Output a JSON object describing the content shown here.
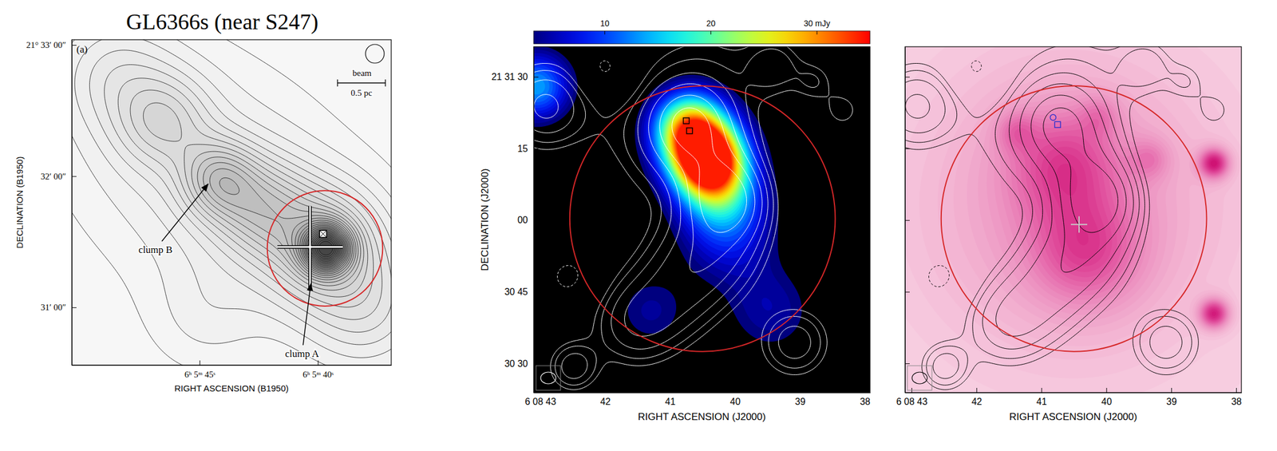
{
  "chart_data": {
    "type": "contour_map",
    "title": "GL6366s (near S247)",
    "panels": [
      {
        "type": "contour",
        "label": "(a)",
        "xlabel": "RIGHT ASCENSION (B1950)",
        "ylabel": "DECLINATION (B1950)",
        "xlim": [
          50.4,
          36.9
        ],
        "xticks": [
          {
            "value": 45,
            "label": "6ʰ 5ᵐ 45ˢ"
          },
          {
            "value": 40,
            "label": "6ʰ 5ᵐ 40ˢ"
          }
        ],
        "ylim": [
          30.56,
          33.04
        ],
        "yticks": [
          {
            "value": 33,
            "label": "21° 33′ 00″"
          },
          {
            "value": 32,
            "label": "32′ 00″"
          },
          {
            "value": 31,
            "label": "31′ 00″"
          }
        ],
        "contour_levels": [
          1,
          2,
          3,
          4,
          5,
          6,
          7,
          8,
          9,
          10,
          11,
          12,
          13,
          14,
          15,
          16,
          17,
          18,
          19,
          20,
          21,
          22,
          23,
          24,
          25,
          26,
          27,
          28
        ],
        "contour_sources": [
          {
            "ra": 39.64,
            "dec": 31.45,
            "peak": 18,
            "sigma": 0.12
          },
          {
            "ra": 39.8,
            "dec": 31.48,
            "peak": 8,
            "sigma": 0.3
          },
          {
            "ra": 44.19,
            "dec": 31.98,
            "peak": 7,
            "sigma": 0.2
          },
          {
            "ra": 46.54,
            "dec": 32.42,
            "peak": 5,
            "sigma": 0.25
          },
          {
            "ra": 42.4,
            "dec": 31.76,
            "peak": 6,
            "sigma": 0.25
          },
          {
            "ra": 48.6,
            "dec": 32.79,
            "peak": 3,
            "sigma": 0.3
          },
          {
            "ra": 43.1,
            "dec": 31.76,
            "peak": 3,
            "sigma": 0.6
          },
          {
            "ra": 47.23,
            "dec": 32.36,
            "peak": 2,
            "sigma": 0.6
          },
          {
            "ra": 38.26,
            "dec": 31.09,
            "peak": 2,
            "sigma": 0.5
          },
          {
            "ra": 37.92,
            "dec": 30.97,
            "peak": 3,
            "sigma": 0.3
          },
          {
            "ra": 44.81,
            "dec": 30.91,
            "peak": 1.5,
            "sigma": 0.3
          }
        ],
        "color": "#111111",
        "circle": {
          "ra": 39.7,
          "dec": 31.45,
          "radius": 0.44,
          "color": "#d62728"
        },
        "cross": {
          "ra": 40.33,
          "dec": 31.46,
          "color": "#ffffff"
        },
        "markers": [
          {
            "ra": 39.78,
            "dec": 31.56,
            "marker": "square",
            "color": "#000000"
          }
        ],
        "annotations": [
          {
            "text": "clump B",
            "ra": 44.64,
            "dec": 31.94
          },
          {
            "text": "clump A",
            "ra": 40.3,
            "dec": 31.18
          }
        ],
        "beam_label": "beam",
        "scale_bar_label": "0.5 pc"
      },
      {
        "type": "image_contour",
        "xlabel": "RIGHT ASCENSION (J2000)",
        "ylabel": "DECLINATION (J2000)",
        "xlim": [
          43.1,
          37.92
        ],
        "xticks": [
          {
            "value": 43,
            "label": "6 08 43"
          },
          42,
          41,
          40,
          39,
          38
        ],
        "ylim": [
          23.9,
          96.3
        ],
        "yticks": [
          {
            "value": 90,
            "label": "21 31 30"
          },
          {
            "value": 75,
            "label": "15"
          },
          {
            "value": 60,
            "label": "00"
          },
          {
            "value": 45,
            "label": "30 45"
          },
          {
            "value": 30,
            "label": "30 30"
          }
        ],
        "colorbar": {
          "range": [
            3.3,
            35
          ],
          "ticks": [
            10,
            20,
            {
              "value": 30,
              "label": "30 mJy"
            }
          ]
        },
        "image_sources": [
          {
            "ra": 40.72,
            "dec": 79.6,
            "peak": 20,
            "sigma": 5
          },
          {
            "ra": 40.42,
            "dec": 72.8,
            "peak": 32,
            "sigma": 5
          },
          {
            "ra": 40.55,
            "dec": 76.5,
            "peak": 10,
            "sigma": 7
          },
          {
            "ra": 40.23,
            "dec": 66,
            "peak": 14,
            "sigma": 6
          },
          {
            "ra": 40.1,
            "dec": 56.6,
            "peak": 7,
            "sigma": 7
          },
          {
            "ra": 43.05,
            "dec": 88,
            "peak": 14,
            "sigma": 5
          },
          {
            "ra": 39.45,
            "dec": 41,
            "peak": 5,
            "sigma": 7
          },
          {
            "ra": 41.3,
            "dec": 41,
            "peak": 4.5,
            "sigma": 6
          }
        ],
        "contour_levels": [
          -2,
          2,
          2.8,
          4,
          5.6,
          8,
          11
        ],
        "contour_sources": [
          {
            "ra": 40.48,
            "dec": 87.3,
            "peak": 3,
            "sigma": 10
          },
          {
            "ra": 40.72,
            "dec": 80.4,
            "peak": 8,
            "sigma": 5
          },
          {
            "ra": 40.36,
            "dec": 71.9,
            "peak": 6,
            "sigma": 6
          },
          {
            "ra": 40.11,
            "dec": 64.2,
            "peak": 10,
            "sigma": 5
          },
          {
            "ra": 40.23,
            "dec": 56.6,
            "peak": 5,
            "sigma": 7
          },
          {
            "ra": 40.6,
            "dec": 49.8,
            "peak": 4,
            "sigma": 7
          },
          {
            "ra": 41.09,
            "dec": 42.9,
            "peak": 4,
            "sigma": 7
          },
          {
            "ra": 41.58,
            "dec": 37.8,
            "peak": 4,
            "sigma": 6
          },
          {
            "ra": 41.33,
            "dec": 75.3,
            "peak": 2.5,
            "sigma": 9
          },
          {
            "ra": 39.38,
            "dec": 92.4,
            "peak": 3,
            "sigma": 4
          },
          {
            "ra": 38.77,
            "dec": 89.0,
            "peak": 2.5,
            "sigma": 3
          },
          {
            "ra": 38.34,
            "dec": 83.0,
            "peak": 2.5,
            "sigma": 3
          },
          {
            "ra": 39.08,
            "dec": 34.4,
            "peak": 5,
            "sigma": 5
          },
          {
            "ra": 42.49,
            "dec": 29.3,
            "peak": 5,
            "sigma": 3.5
          },
          {
            "ra": 42.92,
            "dec": 83.9,
            "peak": 6,
            "sigma": 6
          },
          {
            "ra": 42.0,
            "dec": 91.5,
            "peak": -3,
            "sigma": 4
          },
          {
            "ra": 42.31,
            "dec": 66.8,
            "peak": -2.5,
            "sigma": 4
          },
          {
            "ra": 42.55,
            "dec": 48.1,
            "peak": -2.5,
            "sigma": 4
          }
        ],
        "color": "#ffffff",
        "circle": {
          "ra": 40.5,
          "dec": 60.3,
          "radius": 27.8,
          "color": "#d62728"
        },
        "markers": [
          {
            "ra": 40.75,
            "dec": 80.8,
            "marker": "square",
            "color": "#000000"
          },
          {
            "ra": 40.7,
            "dec": 78.7,
            "marker": "square",
            "color": "#000000"
          }
        ]
      },
      {
        "type": "image_contour",
        "tick_labels": "x",
        "xlabel": "RIGHT ASCENSION (J2000)",
        "xlim": [
          43.1,
          37.92
        ],
        "xticks": [
          {
            "value": 43,
            "label": "6 08 43"
          },
          42,
          41,
          40,
          39,
          38
        ],
        "ylim": [
          23.9,
          96.3
        ],
        "yticks": [
          90,
          75,
          60,
          45,
          30
        ],
        "background": 0.8,
        "image_sources": [
          {
            "ra": 40.54,
            "dec": 63.4,
            "peak": 2.5,
            "sigma": 22
          },
          {
            "ra": 40.66,
            "dec": 71.9,
            "peak": 2.5,
            "sigma": 8
          },
          {
            "ra": 40.3,
            "dec": 53.2,
            "peak": 2.5,
            "sigma": 8
          },
          {
            "ra": 38.34,
            "dec": 71.9,
            "peak": 5,
            "sigma": 2.2
          },
          {
            "ra": 38.34,
            "dec": 40.4,
            "peak": 5,
            "sigma": 2.2
          },
          {
            "ra": 39.32,
            "dec": 72.8,
            "peak": 1.5,
            "sigma": 3
          },
          {
            "ra": 41.39,
            "dec": 78.7,
            "peak": 1.5,
            "sigma": 3
          },
          {
            "ra": 40.1,
            "dec": 82,
            "peak": 1.2,
            "sigma": 3
          }
        ],
        "contour_levels": [
          -2,
          2,
          2.8,
          4,
          5.6,
          8,
          11
        ],
        "contour_sources": [
          {
            "ra": 40.48,
            "dec": 87.3,
            "peak": 3,
            "sigma": 10
          },
          {
            "ra": 40.72,
            "dec": 80.4,
            "peak": 8,
            "sigma": 5
          },
          {
            "ra": 40.36,
            "dec": 71.9,
            "peak": 6,
            "sigma": 6
          },
          {
            "ra": 40.11,
            "dec": 64.2,
            "peak": 10,
            "sigma": 5
          },
          {
            "ra": 40.23,
            "dec": 56.6,
            "peak": 5,
            "sigma": 7
          },
          {
            "ra": 40.6,
            "dec": 49.8,
            "peak": 4,
            "sigma": 7
          },
          {
            "ra": 41.09,
            "dec": 42.9,
            "peak": 4,
            "sigma": 7
          },
          {
            "ra": 41.58,
            "dec": 37.8,
            "peak": 4,
            "sigma": 6
          },
          {
            "ra": 41.33,
            "dec": 75.3,
            "peak": 2.5,
            "sigma": 9
          },
          {
            "ra": 39.38,
            "dec": 92.4,
            "peak": 3,
            "sigma": 4
          },
          {
            "ra": 38.77,
            "dec": 89.0,
            "peak": 2.5,
            "sigma": 3
          },
          {
            "ra": 38.34,
            "dec": 83.0,
            "peak": 2.5,
            "sigma": 3
          },
          {
            "ra": 39.08,
            "dec": 34.4,
            "peak": 5,
            "sigma": 5
          },
          {
            "ra": 42.49,
            "dec": 29.3,
            "peak": 5,
            "sigma": 3.5
          },
          {
            "ra": 42.92,
            "dec": 83.9,
            "peak": 6,
            "sigma": 6
          },
          {
            "ra": 42.0,
            "dec": 91.5,
            "peak": -3,
            "sigma": 4
          },
          {
            "ra": 42.31,
            "dec": 66.8,
            "peak": -2.5,
            "sigma": 4
          },
          {
            "ra": 42.55,
            "dec": 48.1,
            "peak": -2.5,
            "sigma": 4
          }
        ],
        "color": "#000000",
        "circle": {
          "ra": 40.5,
          "dec": 60.3,
          "radius": 27.8,
          "color": "#d62728"
        },
        "cross": {
          "ra": 40.42,
          "dec": 59.1,
          "color": "#c8c8c8"
        },
        "markers": [
          {
            "ra": 40.75,
            "dec": 80.0,
            "marker": "square",
            "color": "#3333cc"
          },
          {
            "ra": 40.82,
            "dec": 81.5,
            "marker": "circle",
            "color": "#3333cc"
          }
        ]
      }
    ]
  }
}
